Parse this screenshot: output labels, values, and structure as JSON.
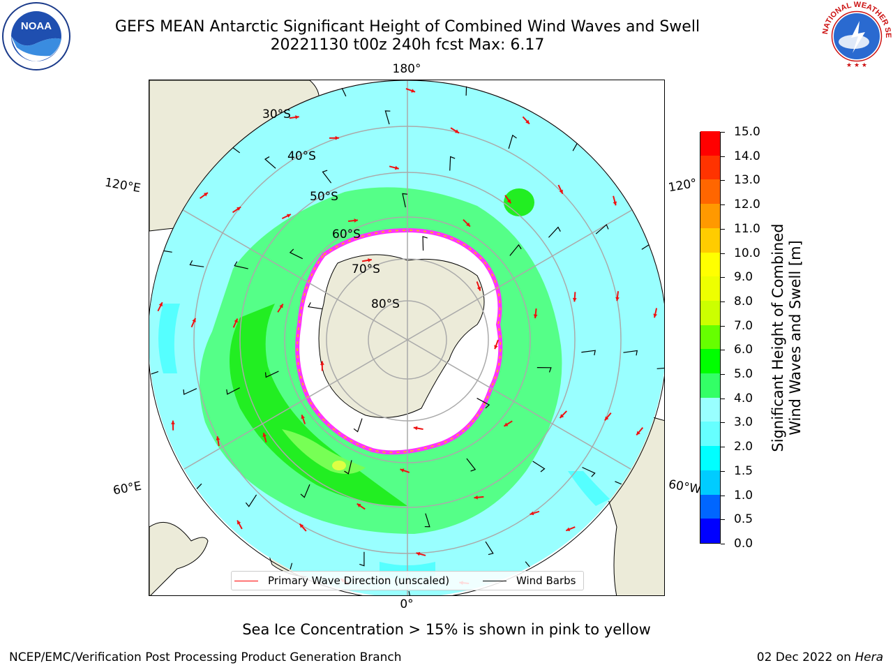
{
  "header": {
    "title_line1": "GEFS MEAN Antarctic Significant Height of Combined Wind Waves and Swell",
    "title_line2": "20221130 t00z 240h fcst   Max: 6.17"
  },
  "logos": {
    "left": "noaa-logo",
    "right": "national-weather-service-logo",
    "left_text": "NOAA",
    "right_text": "NATIONAL WEATHER SERVICE"
  },
  "map": {
    "projection": "south-polar-stereographic",
    "longitude_labels": {
      "top": "180°",
      "bottom": "0°",
      "upper_left": "120°E",
      "upper_right": "120°",
      "lower_left": "60°E",
      "lower_right": "60°W"
    },
    "latitude_labels": [
      "30°S",
      "40°S",
      "50°S",
      "60°S",
      "70°S",
      "80°S"
    ],
    "colors": {
      "land": "#ecebd9",
      "ocean_low": "#99ffff",
      "wave_arrow": "#ee1111",
      "wind_barb": "#000000",
      "ice": "#ffffff",
      "ice_edge": "#ff33ff"
    }
  },
  "legend": {
    "wave_label": "Primary Wave Direction (unscaled)",
    "wave_color": "#ff0000",
    "barb_label": "Wind Barbs",
    "barb_color": "#000000"
  },
  "colorbar": {
    "title_line1": "Significant Height of Combined",
    "title_line2": "Wind Waves and Swell [m]",
    "ticks": [
      "0.0",
      "0.5",
      "1.0",
      "1.5",
      "2.0",
      "3.0",
      "4.0",
      "5.0",
      "6.0",
      "7.0",
      "8.0",
      "9.0",
      "10.0",
      "11.0",
      "12.0",
      "13.0",
      "14.0",
      "15.0"
    ],
    "colors": [
      "#0000ff",
      "#0066ff",
      "#00ccff",
      "#00ffff",
      "#66ffff",
      "#99ffff",
      "#33ff66",
      "#00ff00",
      "#66ff00",
      "#ccff00",
      "#eeff00",
      "#ffff00",
      "#ffcc00",
      "#ff9900",
      "#ff6600",
      "#ff3300",
      "#ff0000"
    ]
  },
  "note": "Sea Ice Concentration > 15% is shown in pink to yellow",
  "footer": {
    "left": "NCEP/EMC/Verification Post Processing Product Generation Branch",
    "right_date": "02 Dec 2022 on ",
    "right_host": "Hera"
  }
}
